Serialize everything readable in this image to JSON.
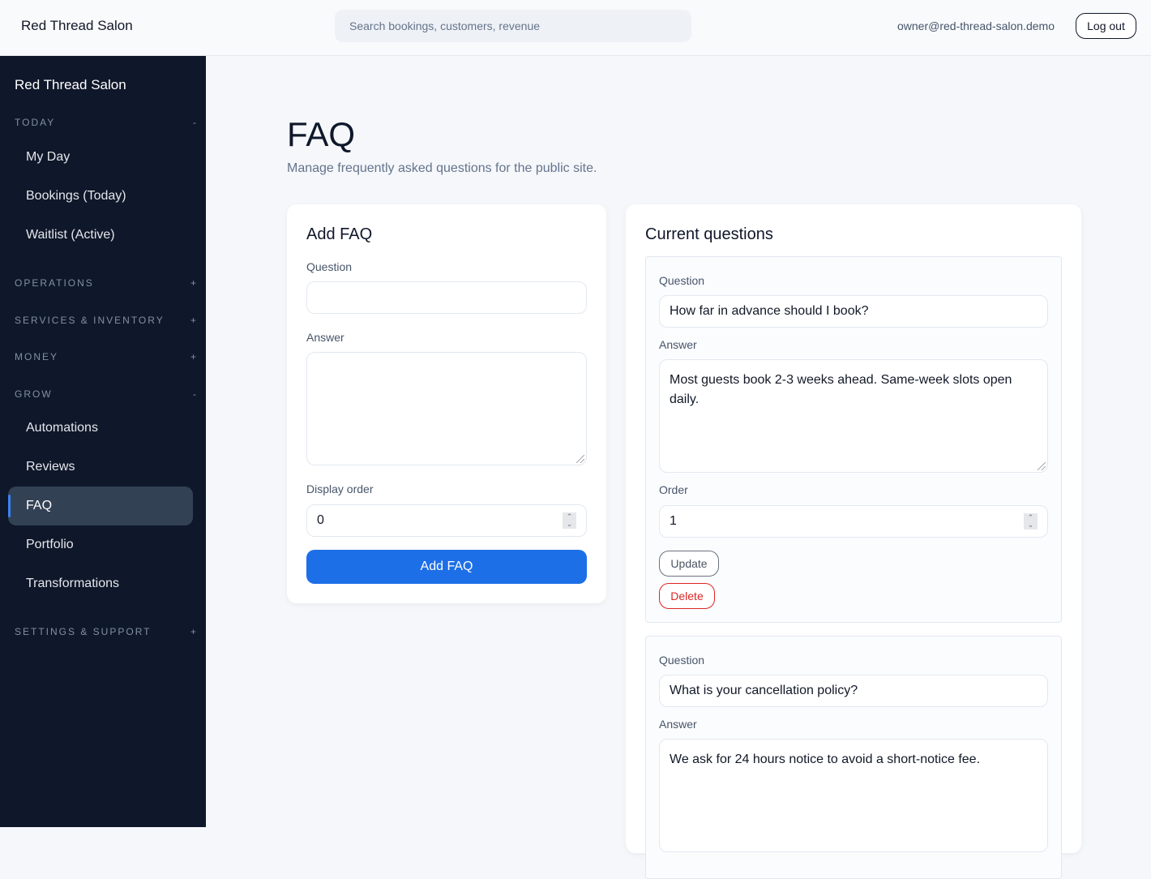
{
  "header": {
    "brand": "Red Thread Salon",
    "search_placeholder": "Search bookings, customers, revenue",
    "email": "owner@red-thread-salon.demo",
    "logout": "Log out"
  },
  "sidebar": {
    "brand": "Red Thread Salon",
    "sections": [
      {
        "label": "TODAY",
        "toggle": "-",
        "items": [
          "My Day",
          "Bookings (Today)",
          "Waitlist (Active)"
        ]
      },
      {
        "label": "OPERATIONS",
        "toggle": "+"
      },
      {
        "label": "SERVICES & INVENTORY",
        "toggle": "+"
      },
      {
        "label": "MONEY",
        "toggle": "+"
      },
      {
        "label": "GROW",
        "toggle": "-",
        "items": [
          "Automations",
          "Reviews",
          "FAQ",
          "Portfolio",
          "Transformations"
        ]
      },
      {
        "label": "SETTINGS & SUPPORT",
        "toggle": "+"
      }
    ],
    "active": "FAQ"
  },
  "page": {
    "title": "FAQ",
    "subtitle": "Manage frequently asked questions for the public site."
  },
  "add_form": {
    "title": "Add FAQ",
    "question_label": "Question",
    "question_value": "",
    "answer_label": "Answer",
    "answer_value": "",
    "order_label": "Display order",
    "order_value": "0",
    "submit": "Add FAQ"
  },
  "current": {
    "title": "Current questions",
    "items": [
      {
        "question_label": "Question",
        "question": "How far in advance should I book?",
        "answer_label": "Answer",
        "answer": "Most guests book 2-3 weeks ahead. Same-week slots open daily.",
        "order_label": "Order",
        "order": "1",
        "update": "Update",
        "delete": "Delete"
      },
      {
        "question_label": "Question",
        "question": "What is your cancellation policy?",
        "answer_label": "Answer",
        "answer": "We ask for 24 hours notice to avoid a short-notice fee."
      }
    ]
  },
  "colors": {
    "sidebar": "#0f172a",
    "primary": "#1d6fe8",
    "danger": "#dc2626"
  }
}
